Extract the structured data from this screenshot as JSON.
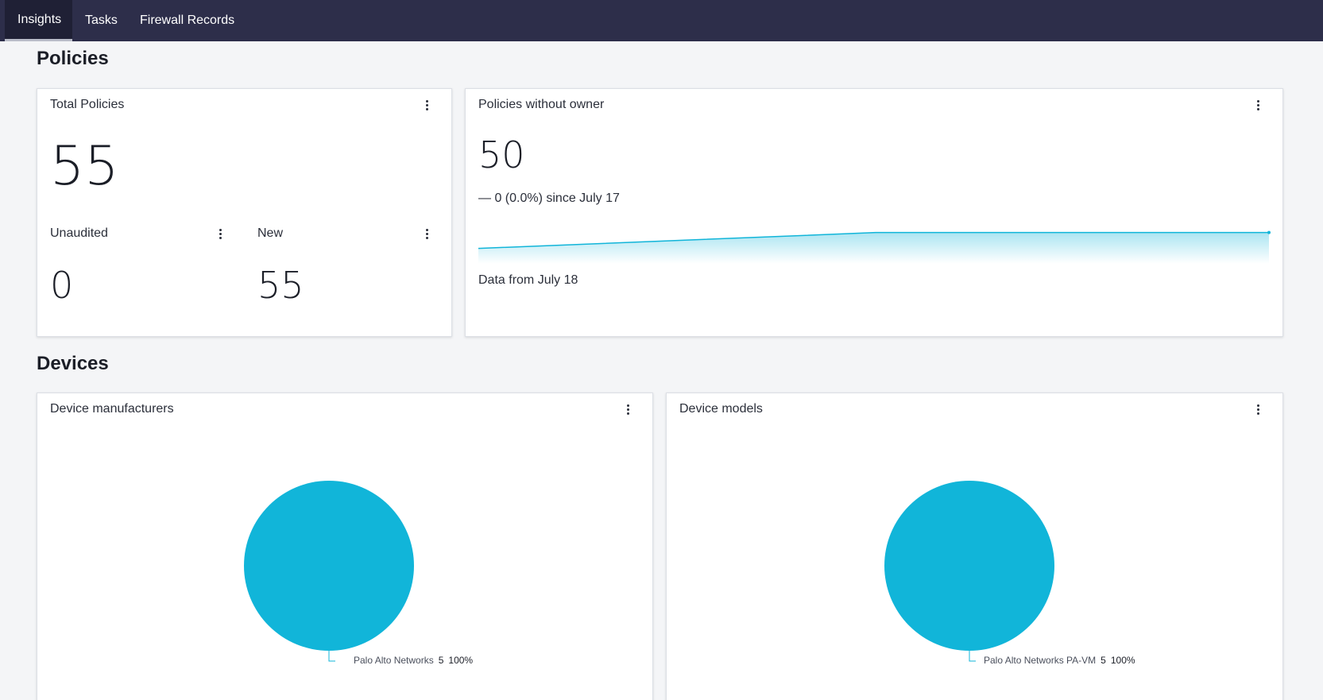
{
  "nav": {
    "tabs": [
      {
        "label": "Insights",
        "active": true
      },
      {
        "label": "Tasks",
        "active": false
      },
      {
        "label": "Firewall Records",
        "active": false
      }
    ]
  },
  "policies": {
    "section_title": "Policies",
    "total_card": {
      "title": "Total Policies",
      "value": "55",
      "unaudited_label": "Unaudited",
      "unaudited_value": "0",
      "new_label": "New",
      "new_value": "55"
    },
    "owner_card": {
      "title": "Policies without owner",
      "value": "50",
      "delta_symbol": "—",
      "delta_text": "0 (0.0%) since July 17",
      "data_from": "Data from July 18"
    }
  },
  "devices": {
    "section_title": "Devices",
    "manufacturers_card": {
      "title": "Device manufacturers",
      "legend_name": "Palo Alto Networks",
      "legend_count": "5",
      "legend_percent": "100%"
    },
    "models_card": {
      "title": "Device models",
      "legend_name": "Palo Alto Networks PA-VM",
      "legend_count": "5",
      "legend_percent": "100%"
    }
  },
  "colors": {
    "nav_bg": "#2d2e4a",
    "accent": "#11b5d9",
    "page_bg": "#f4f5f7"
  },
  "chart_data": [
    {
      "type": "area",
      "series": [
        {
          "values": [
            44,
            50,
            50
          ]
        }
      ],
      "ylim": [
        40,
        52
      ]
    },
    {
      "type": "pie",
      "categories": [
        "Palo Alto Networks"
      ],
      "values": [
        5
      ],
      "percent": [
        100
      ]
    },
    {
      "type": "pie",
      "categories": [
        "Palo Alto Networks PA-VM"
      ],
      "values": [
        5
      ],
      "percent": [
        100
      ]
    }
  ]
}
